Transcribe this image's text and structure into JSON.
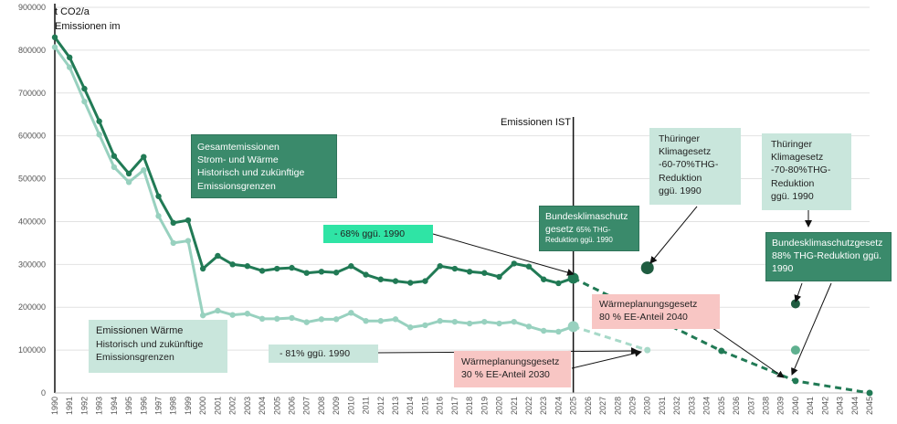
{
  "chart_data": {
    "type": "line",
    "y_unit_label": [
      "t CO2/a",
      "Emissionen im"
    ],
    "ylim": [
      0,
      900000
    ],
    "yticks": [
      0,
      100000,
      200000,
      300000,
      400000,
      500000,
      600000,
      700000,
      800000,
      900000
    ],
    "x_categories": [
      "1990",
      "1991",
      "1992",
      "1993",
      "1994",
      "1995",
      "1996",
      "1997",
      "1998",
      "1999",
      "2000",
      "2001",
      "2002",
      "2003",
      "2004",
      "2005",
      "2006",
      "2007",
      "2008",
      "2009",
      "2010",
      "2011",
      "2012",
      "2013",
      "2014",
      "2015",
      "2016",
      "2017",
      "2018",
      "2019",
      "2020",
      "2021",
      "2022",
      "2023",
      "2024",
      "2025",
      "2026",
      "2027",
      "2028",
      "2029",
      "2030",
      "2031",
      "2032",
      "2033",
      "2034",
      "2035",
      "2036",
      "2037",
      "2038",
      "2039",
      "2040",
      "2041",
      "2042",
      "2043",
      "2044",
      "2045"
    ],
    "series": [
      {
        "key": "gesamt",
        "color": "#217a55",
        "x": [
          1990,
          1991,
          1992,
          1993,
          1994,
          1995,
          1996,
          1997,
          1998,
          1999,
          2000,
          2001,
          2002,
          2003,
          2004,
          2005,
          2006,
          2007,
          2008,
          2009,
          2010,
          2011,
          2012,
          2013,
          2014,
          2015,
          2016,
          2017,
          2018,
          2019,
          2020,
          2021,
          2022,
          2023,
          2024,
          2025
        ],
        "values": [
          830000,
          783000,
          710000,
          634000,
          553000,
          512000,
          551000,
          459000,
          397000,
          403000,
          290000,
          320000,
          300000,
          296000,
          285000,
          290000,
          292000,
          280000,
          283000,
          281000,
          296000,
          276000,
          265000,
          261000,
          257000,
          261000,
          296000,
          290000,
          283000,
          280000,
          271000,
          302000,
          295000,
          265000,
          256000,
          268000
        ]
      },
      {
        "key": "waerme",
        "color": "#98d1bf",
        "x": [
          1990,
          1991,
          1992,
          1993,
          1994,
          1995,
          1996,
          1997,
          1998,
          1999,
          2000,
          2001,
          2002,
          2003,
          2004,
          2005,
          2006,
          2007,
          2008,
          2009,
          2010,
          2011,
          2012,
          2013,
          2014,
          2015,
          2016,
          2017,
          2018,
          2019,
          2020,
          2021,
          2022,
          2023,
          2024,
          2025
        ],
        "values": [
          807000,
          760000,
          680000,
          603000,
          527000,
          492000,
          520000,
          413000,
          350000,
          355000,
          181000,
          192000,
          182000,
          185000,
          173000,
          173000,
          175000,
          165000,
          172000,
          172000,
          187000,
          168000,
          168000,
          172000,
          153000,
          158000,
          168000,
          166000,
          162000,
          166000,
          162000,
          166000,
          155000,
          145000,
          143000,
          155000
        ]
      }
    ],
    "targets_gesamt": {
      "color": "#217a55",
      "x": [
        2025,
        2035,
        2040,
        2045
      ],
      "values": [
        268000,
        98000,
        28000,
        0
      ]
    },
    "targets_waerme": {
      "color": "#a7d9c8",
      "x": [
        2025,
        2030
      ],
      "values": [
        155000,
        100000
      ]
    },
    "markers": [
      {
        "x": 2030,
        "value": 292000,
        "color": "#1f5c40"
      },
      {
        "x": 2040,
        "value": 208000,
        "color": "#1f5c40"
      },
      {
        "x": 2040,
        "value": 100000,
        "color": "#5fb08f"
      }
    ],
    "ist_marker": {
      "year": 2025,
      "label": "Emissionen IST"
    },
    "boxes": {
      "gesamt": [
        "Gesamtemissionen",
        "Strom- und  Wärme",
        "Historisch und zukünftige",
        " Emissionsgrenzen"
      ],
      "waerme": [
        "Emissionen Wärme",
        "Historisch und zukünftige",
        "Emissionsgrenzen"
      ],
      "minus68": "- 68% ggü. 1990",
      "minus81": "- 81% ggü. 1990",
      "bundes65_title": [
        "Bundesklimaschutz",
        "gesetz"
      ],
      "bundes65_small": [
        "65% THG-",
        "Reduktion ggü. 1990"
      ],
      "thueringen_6070": [
        "Thüringer",
        "Klimagesetz",
        "-60-70%THG-",
        "Reduktion",
        "ggü. 1990"
      ],
      "thueringen_7080": [
        "Thüringer",
        "Klimagesetz",
        "-70-80%THG-",
        "Reduktion",
        "ggü. 1990"
      ],
      "bundes88": [
        "Bundesklimaschutzgesetz",
        "88% THG-Reduktion ggü.",
        "1990"
      ],
      "wpg2040": [
        "Wärmeplanungsgesetz",
        "80 % EE-Anteil 2040"
      ],
      "wpg2030": [
        "Wärmeplanungsgesetz",
        "30 % EE-Anteil 2030"
      ]
    }
  }
}
